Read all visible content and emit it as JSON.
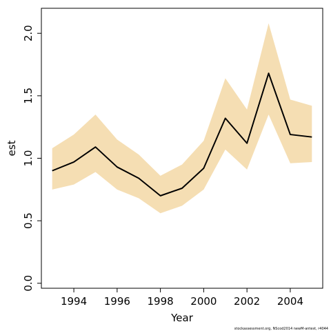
{
  "chart_data": {
    "type": "line",
    "title": "",
    "xlabel": "Year",
    "ylabel": "est",
    "xlim": [
      1992.5,
      2005.5
    ],
    "ylim": [
      -0.04,
      2.2
    ],
    "x_ticks": [
      1994,
      1996,
      1998,
      2000,
      2002,
      2004
    ],
    "x_tick_labels": [
      "1994",
      "1996",
      "1998",
      "2000",
      "2002",
      "2004"
    ],
    "y_ticks": [
      0.0,
      0.5,
      1.0,
      1.5,
      2.0
    ],
    "y_tick_labels": [
      "0.0",
      "0.5",
      "1.0",
      "1.5",
      "2.0"
    ],
    "grid": false,
    "legend": "none",
    "colors": {
      "line": "#000000",
      "band": "#f5deb3"
    },
    "x": [
      1993,
      1994,
      1995,
      1996,
      1997,
      1998,
      1999,
      2000,
      2001,
      2002,
      2003,
      2004,
      2005
    ],
    "series": [
      {
        "values": [
          0.9,
          0.97,
          1.09,
          0.93,
          0.84,
          0.7,
          0.76,
          0.92,
          1.32,
          1.12,
          1.68,
          1.19,
          1.17
        ]
      }
    ],
    "band": {
      "lower": [
        0.75,
        0.79,
        0.89,
        0.75,
        0.68,
        0.56,
        0.62,
        0.75,
        1.07,
        0.91,
        1.35,
        0.96,
        0.97
      ],
      "upper": [
        1.08,
        1.19,
        1.35,
        1.15,
        1.03,
        0.86,
        0.95,
        1.14,
        1.64,
        1.39,
        2.08,
        1.47,
        1.42
      ]
    }
  },
  "footer": "stockassessment.org, NScod2014 newM-antest, r4044"
}
